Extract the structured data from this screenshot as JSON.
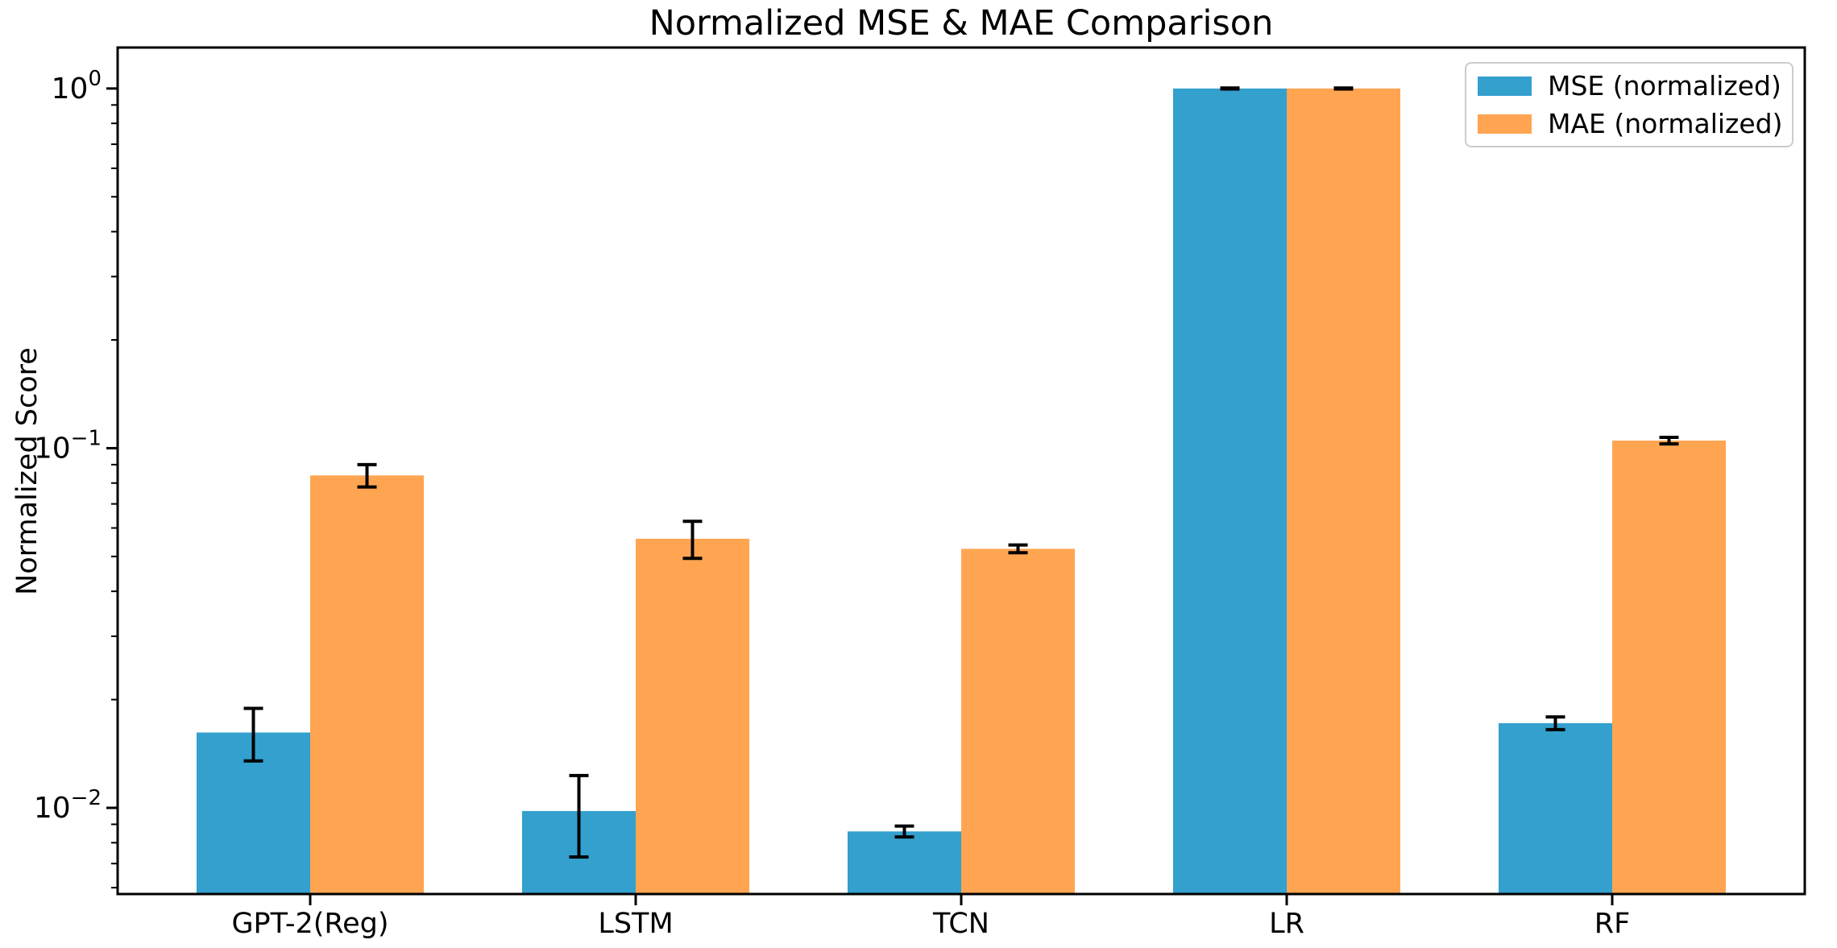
{
  "title": "Normalized MSE & MAE Comparison",
  "ylabel": "Normalized Score",
  "legend": {
    "items": [
      {
        "label": "MSE (normalized)",
        "color": "#33a0ce"
      },
      {
        "label": "MAE (normalized)",
        "color": "#ffa552"
      }
    ]
  },
  "colors": {
    "mse": "#33a0ce",
    "mae": "#ffa552",
    "errorbar": "#000000",
    "spine": "#000000"
  },
  "chart_data": {
    "type": "bar",
    "scale": "log",
    "title": "Normalized MSE & MAE Comparison",
    "xlabel": "",
    "ylabel": "Normalized Score",
    "categories": [
      "GPT-2(Reg)",
      "LSTM",
      "TCN",
      "LR",
      "RF"
    ],
    "series": [
      {
        "name": "MSE (normalized)",
        "color": "#33a0ce",
        "values": [
          0.0162,
          0.0098,
          0.0086,
          1.0,
          0.0172
        ],
        "errors": [
          0.0027,
          0.0025,
          0.0003,
          0.003,
          0.0007
        ]
      },
      {
        "name": "MAE (normalized)",
        "color": "#ffa552",
        "values": [
          0.084,
          0.056,
          0.0525,
          1.0,
          0.105
        ],
        "errors": [
          0.006,
          0.0066,
          0.0013,
          0.003,
          0.0022
        ]
      }
    ],
    "ylim": [
      0.00576,
      1.3
    ],
    "yticks": [
      {
        "value": 1.0,
        "base": "10",
        "exponent": "0"
      },
      {
        "value": 0.1,
        "base": "10",
        "exponent": "−1"
      },
      {
        "value": 0.01,
        "base": "10",
        "exponent": "−2"
      }
    ],
    "minor_ticks": true,
    "grid": false,
    "legend_position": "upper right"
  }
}
